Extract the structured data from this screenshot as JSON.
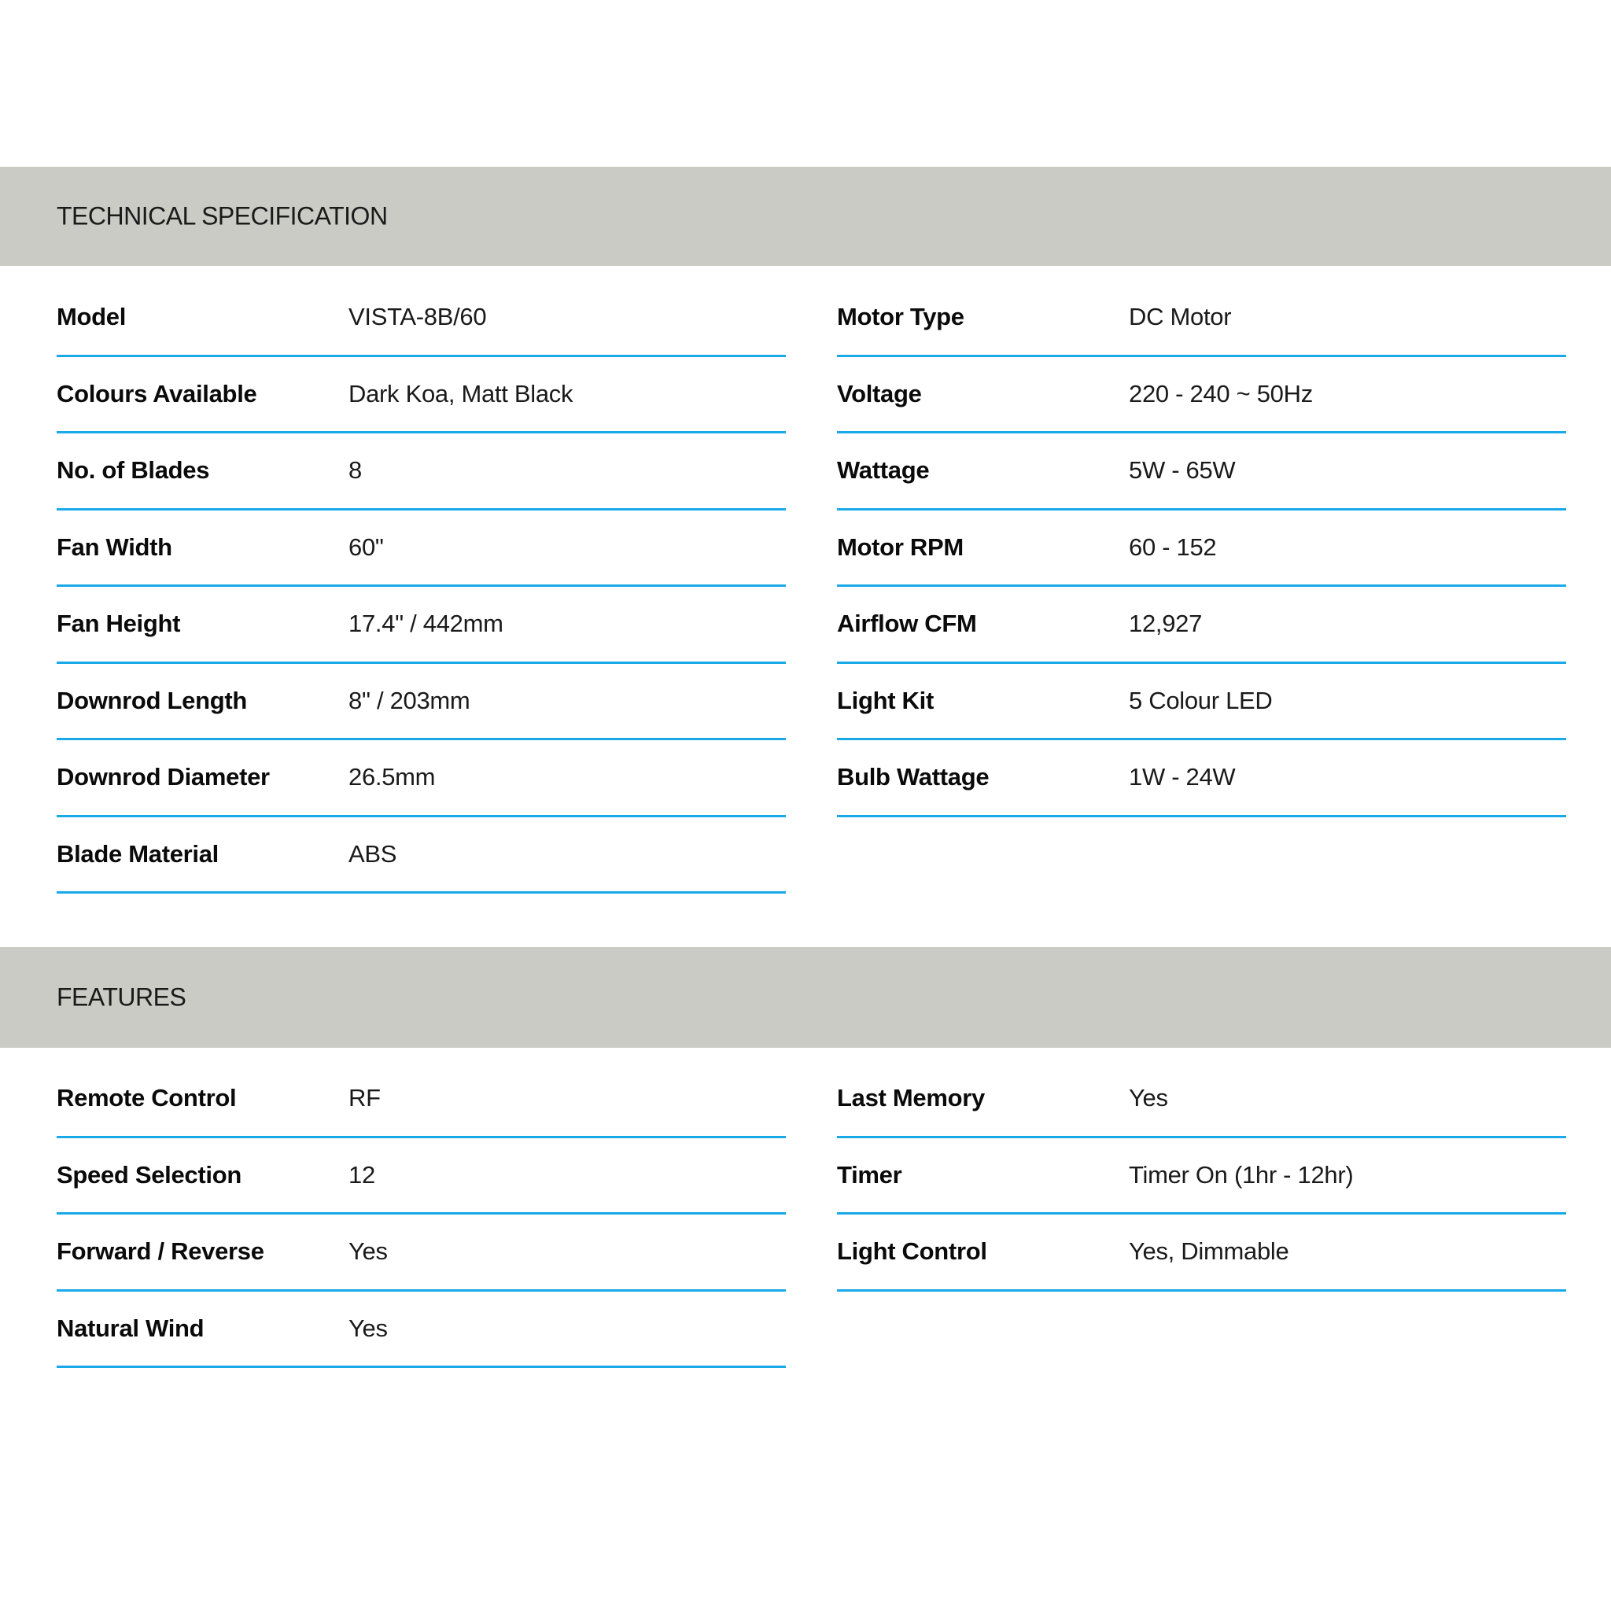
{
  "technical_specification": {
    "title": "TECHNICAL SPECIFICATION",
    "left": [
      {
        "label": "Model",
        "value": "VISTA-8B/60"
      },
      {
        "label": "Colours Available",
        "value": "Dark Koa, Matt Black"
      },
      {
        "label": "No. of Blades",
        "value": "8"
      },
      {
        "label": "Fan Width",
        "value": "60\""
      },
      {
        "label": "Fan Height",
        "value": "17.4\" / 442mm"
      },
      {
        "label": "Downrod Length",
        "value": "8\" / 203mm"
      },
      {
        "label": "Downrod Diameter",
        "value": "26.5mm"
      },
      {
        "label": "Blade Material",
        "value": "ABS"
      }
    ],
    "right": [
      {
        "label": "Motor Type",
        "value": "DC Motor"
      },
      {
        "label": "Voltage",
        "value": "220 - 240 ~ 50Hz"
      },
      {
        "label": "Wattage",
        "value": "5W - 65W"
      },
      {
        "label": "Motor RPM",
        "value": "60 - 152"
      },
      {
        "label": "Airflow CFM",
        "value": "12,927"
      },
      {
        "label": "Light Kit",
        "value": "5 Colour LED"
      },
      {
        "label": "Bulb Wattage",
        "value": "1W - 24W"
      }
    ]
  },
  "features": {
    "title": "FEATURES",
    "left": [
      {
        "label": "Remote Control",
        "value": "RF"
      },
      {
        "label": "Speed Selection",
        "value": "12"
      },
      {
        "label": "Forward / Reverse",
        "value": "Yes"
      },
      {
        "label": "Natural Wind",
        "value": "Yes"
      }
    ],
    "right": [
      {
        "label": "Last Memory",
        "value": "Yes"
      },
      {
        "label": "Timer",
        "value": "Timer On (1hr - 12hr)"
      },
      {
        "label": "Light Control",
        "value": "Yes, Dimmable"
      }
    ]
  },
  "colors": {
    "band": "#cbcbc6",
    "divider": "#1aa9e8"
  }
}
